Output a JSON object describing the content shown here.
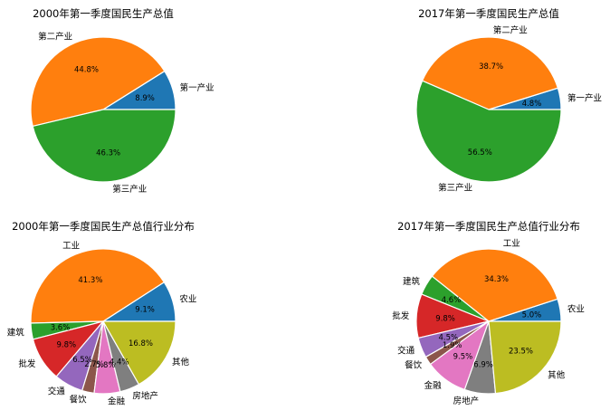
{
  "chart_data": [
    {
      "type": "pie",
      "title": "2000年第一季度国民生产总值",
      "categories": [
        "第一产业",
        "第二产业",
        "第三产业"
      ],
      "values": [
        8.9,
        44.8,
        46.3
      ],
      "value_labels": [
        "8.9%",
        "44.8%",
        "46.3%"
      ],
      "colors": [
        "#1f77b4",
        "#ff7f0e",
        "#2ca02c"
      ]
    },
    {
      "type": "pie",
      "title": "2017年第一季度国民生产总值",
      "categories": [
        "第一产业",
        "第二产业",
        "第三产业"
      ],
      "values": [
        4.8,
        38.7,
        56.5
      ],
      "value_labels": [
        "4.8%",
        "38.7%",
        "56.5%"
      ],
      "colors": [
        "#1f77b4",
        "#ff7f0e",
        "#2ca02c"
      ]
    },
    {
      "type": "pie",
      "title": "2000年第一季度国民生产总值行业分布",
      "categories": [
        "农业",
        "工业",
        "建筑",
        "批发",
        "交通",
        "餐饮",
        "金融",
        "房地产",
        "其他"
      ],
      "values": [
        9.1,
        41.3,
        3.6,
        9.8,
        6.5,
        2.7,
        5.8,
        4.4,
        16.8
      ],
      "value_labels": [
        "9.1%",
        "41.3%",
        "3.6%",
        "9.8%",
        "6.5%",
        "2.7%",
        "5.8%",
        "4.4%",
        "16.8%"
      ],
      "colors": [
        "#1f77b4",
        "#ff7f0e",
        "#2ca02c",
        "#d62728",
        "#9467bd",
        "#8c564b",
        "#e377c2",
        "#7f7f7f",
        "#bcbd22"
      ]
    },
    {
      "type": "pie",
      "title": "2017年第一季度国民生产总值行业分布",
      "categories": [
        "农业",
        "工业",
        "建筑",
        "批发",
        "交通",
        "餐饮",
        "金融",
        "房地产",
        "其他"
      ],
      "values": [
        5.0,
        34.3,
        4.6,
        9.8,
        4.5,
        1.9,
        9.5,
        6.9,
        23.5
      ],
      "value_labels": [
        "5.0%",
        "34.3%",
        "4.6%",
        "9.8%",
        "4.5%",
        "1.9%",
        "9.5%",
        "6.9%",
        "23.5%"
      ],
      "colors": [
        "#1f77b4",
        "#ff7f0e",
        "#2ca02c",
        "#d62728",
        "#9467bd",
        "#8c564b",
        "#e377c2",
        "#7f7f7f",
        "#bcbd22"
      ]
    }
  ]
}
